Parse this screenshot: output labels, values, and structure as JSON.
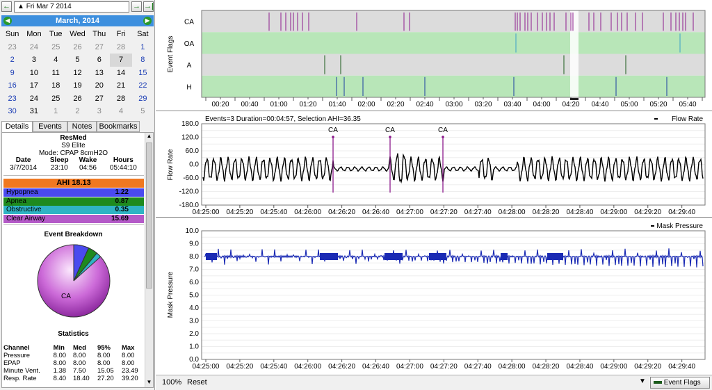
{
  "nav": {
    "date": "Fri Mar 7 2014"
  },
  "calendar": {
    "month_title": "March,  2014",
    "weekdays": [
      "Sun",
      "Mon",
      "Tue",
      "Wed",
      "Thu",
      "Fri",
      "Sat"
    ],
    "weeks": [
      [
        "23",
        "24",
        "25",
        "26",
        "27",
        "28",
        "1"
      ],
      [
        "2",
        "3",
        "4",
        "5",
        "6",
        "7",
        "8"
      ],
      [
        "9",
        "10",
        "11",
        "12",
        "13",
        "14",
        "15"
      ],
      [
        "16",
        "17",
        "18",
        "19",
        "20",
        "21",
        "22"
      ],
      [
        "23",
        "24",
        "25",
        "26",
        "27",
        "28",
        "29"
      ],
      [
        "30",
        "31",
        "1",
        "2",
        "3",
        "4",
        "5"
      ]
    ]
  },
  "tabs": [
    "Details",
    "Events",
    "Notes",
    "Bookmarks"
  ],
  "details": {
    "machine": "ResMed",
    "model": "S9 Elite",
    "mode": "Mode: CPAP 8cmH2O",
    "headers": [
      "Date",
      "Sleep",
      "Wake",
      "Hours"
    ],
    "values": [
      "3/7/2014",
      "23:10",
      "04:56",
      "05:44:10"
    ],
    "ahi": "AHI 18.13",
    "indices": [
      {
        "label": "Hypopnea",
        "value": "1.22",
        "color": "#4a4aef"
      },
      {
        "label": "Apnea",
        "value": "0.87",
        "color": "#1e8a1e"
      },
      {
        "label": "Obstructive",
        "value": "0.35",
        "color": "#2fb4c4"
      },
      {
        "label": "Clear Airway",
        "value": "15.69",
        "color": "#b45ac8"
      }
    ],
    "breakdown_title": "Event Breakdown",
    "pie_label": "CA",
    "stats_title": "Statistics",
    "stats_headers": [
      "Channel",
      "Min",
      "Med",
      "95%",
      "Max"
    ],
    "stats": [
      [
        "Pressure",
        "8.00",
        "8.00",
        "8.00",
        "8.00"
      ],
      [
        "EPAP",
        "8.00",
        "8.00",
        "8.00",
        "8.00"
      ],
      [
        "Minute Vent.",
        "1.38",
        "7.50",
        "15.05",
        "23.49"
      ],
      [
        "Resp. Rate",
        "8.40",
        "18.40",
        "27.20",
        "39.20"
      ]
    ]
  },
  "flags_chart": {
    "ylabel": "Event Flags",
    "rows": [
      "CA",
      "OA",
      "A",
      "H"
    ],
    "ticks": [
      "00:20",
      "00:40",
      "01:00",
      "01:20",
      "01:40",
      "02:00",
      "02:20",
      "02:40",
      "03:00",
      "03:20",
      "03:40",
      "04:00",
      "04:20",
      "04:40",
      "05:00",
      "05:20",
      "05:40"
    ],
    "colors": {
      "CA": "#8c1a8c",
      "OA": "#3aa0c8",
      "A": "#1a5a1a",
      "H": "#1a3ca0"
    }
  },
  "flow_chart": {
    "header": "Events=3 Duration=00:04:57, Selection AHI=36.35",
    "legend": "Flow Rate",
    "ylabel": "Flow Rate",
    "yticks": [
      "180.0",
      "120.0",
      "60.0",
      "0.0",
      "-60.0",
      "-120.0",
      "-180.0"
    ],
    "xticks": [
      "04:25:00",
      "04:25:20",
      "04:25:40",
      "04:26:00",
      "04:26:20",
      "04:26:40",
      "04:27:00",
      "04:27:20",
      "04:27:40",
      "04:28:00",
      "04:28:20",
      "04:28:40",
      "04:29:00",
      "04:29:20",
      "04:29:40"
    ],
    "event_label": "CA"
  },
  "pressure_chart": {
    "legend": "Mask Pressure",
    "ylabel": "Mask Pressure",
    "yticks": [
      "10.0",
      "9.0",
      "8.0",
      "7.0",
      "6.0",
      "5.0",
      "4.0",
      "3.0",
      "2.0",
      "1.0",
      "0.0"
    ],
    "xticks": [
      "04:25:00",
      "04:25:20",
      "04:25:40",
      "04:26:00",
      "04:26:20",
      "04:26:40",
      "04:27:00",
      "04:27:20",
      "04:27:40",
      "04:28:00",
      "04:28:20",
      "04:28:40",
      "04:29:00",
      "04:29:20",
      "04:29:40"
    ]
  },
  "bottom": {
    "zoom": "100%",
    "reset": "Reset",
    "flags_btn": "Event Flags"
  }
}
